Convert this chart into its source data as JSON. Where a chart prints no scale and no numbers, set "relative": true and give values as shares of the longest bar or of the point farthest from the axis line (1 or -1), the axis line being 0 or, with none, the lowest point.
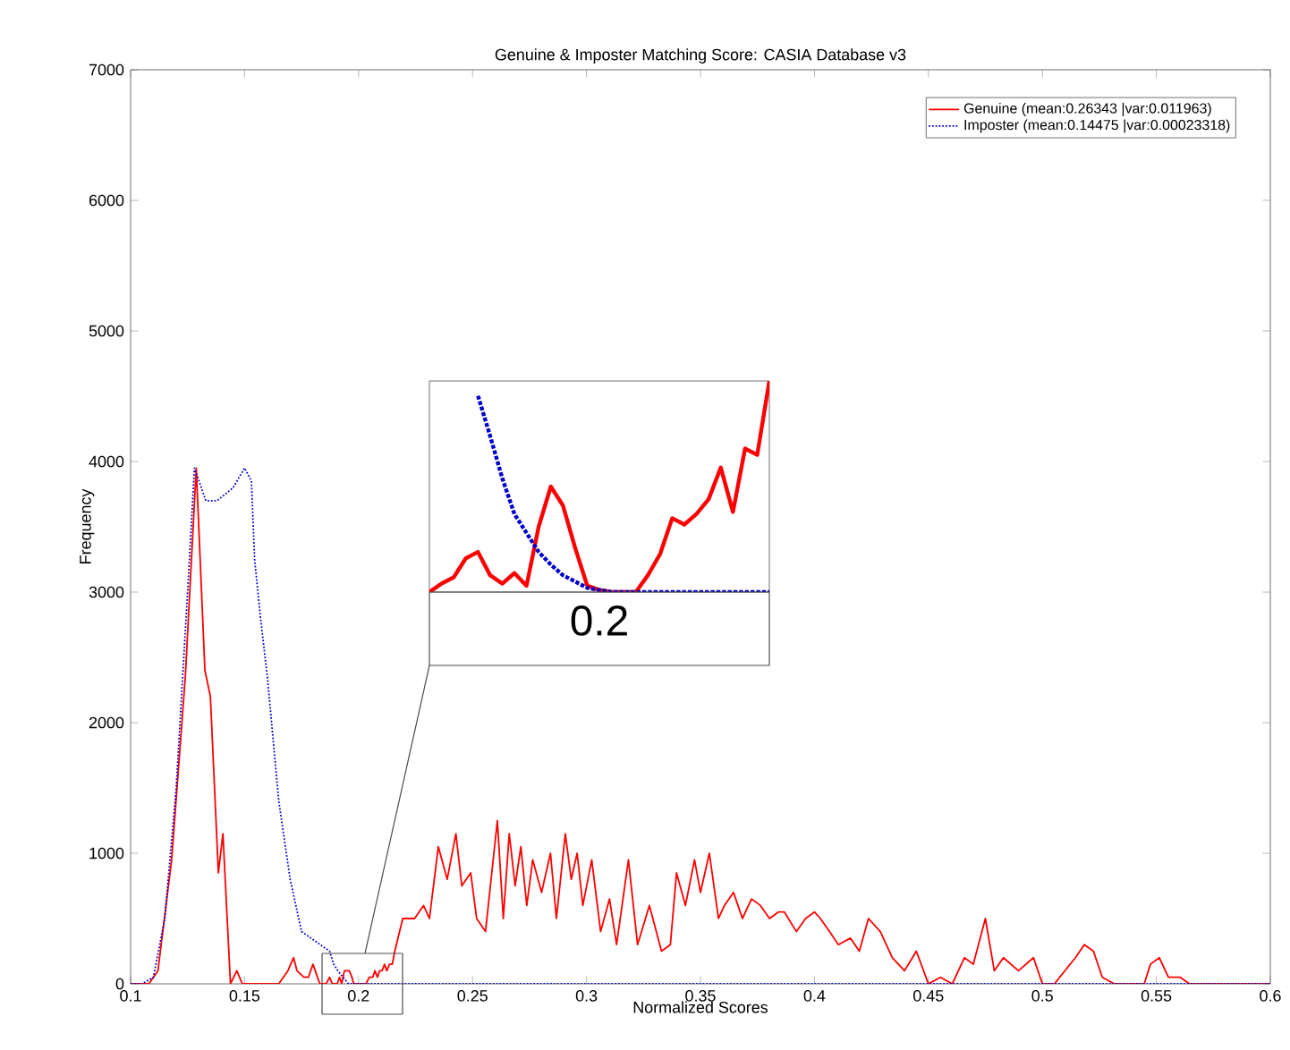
{
  "chart_data": [
    {
      "type": "line",
      "title": "Genuine & Imposter Matching Score: CASIA Database v3",
      "xlabel": "Normalized Scores",
      "ylabel": "Frequency",
      "xlim": [
        0.1,
        0.6
      ],
      "ylim": [
        0,
        7000
      ],
      "xticks": [
        0.1,
        0.15,
        0.2,
        0.25,
        0.3,
        0.35,
        0.4,
        0.45,
        0.5,
        0.55,
        0.6
      ],
      "yticks": [
        0,
        1000,
        2000,
        3000,
        4000,
        5000,
        6000,
        7000
      ],
      "legend": "top right",
      "series": [
        {
          "name": "Genuine (mean:0.26343 |var:0.011963)",
          "color": "#ff0000",
          "line_style": "solid",
          "x": [
            0.1,
            0.108,
            0.112,
            0.118,
            0.124,
            0.1288,
            0.1326,
            0.135,
            0.1385,
            0.1405,
            0.1438,
            0.1466,
            0.149,
            0.165,
            0.169,
            0.1715,
            0.173,
            0.176,
            0.178,
            0.18,
            0.183,
            0.1847,
            0.1858,
            0.1873,
            0.1885,
            0.1897,
            0.1906,
            0.1917,
            0.1926,
            0.1938,
            0.1949,
            0.1959,
            0.1971,
            0.1979,
            0.1988,
            0.1997,
            0.2033,
            0.2047,
            0.2062,
            0.2072,
            0.2083,
            0.2092,
            0.2103,
            0.2114,
            0.2124,
            0.2136,
            0.2148,
            0.2159,
            0.2194,
            0.2246,
            0.2285,
            0.2311,
            0.235,
            0.2389,
            0.2427,
            0.2453,
            0.2492,
            0.2518,
            0.2557,
            0.2609,
            0.2635,
            0.2661,
            0.2687,
            0.2712,
            0.2738,
            0.2764,
            0.2803,
            0.2842,
            0.2868,
            0.2907,
            0.2933,
            0.2959,
            0.2984,
            0.3023,
            0.3062,
            0.3101,
            0.3132,
            0.3184,
            0.3224,
            0.3276,
            0.3329,
            0.3368,
            0.3395,
            0.3434,
            0.3474,
            0.35,
            0.3539,
            0.3579,
            0.3605,
            0.3645,
            0.3684,
            0.3724,
            0.3763,
            0.3803,
            0.3842,
            0.3868,
            0.3921,
            0.3961,
            0.4,
            0.4026,
            0.4066,
            0.4105,
            0.4158,
            0.4197,
            0.4237,
            0.4289,
            0.4342,
            0.4395,
            0.4447,
            0.45,
            0.4553,
            0.4605,
            0.4658,
            0.4697,
            0.475,
            0.4789,
            0.4829,
            0.4895,
            0.4961,
            0.5,
            0.5053,
            0.5145,
            0.5184,
            0.5224,
            0.5263,
            0.5316,
            0.5447,
            0.5474,
            0.5513,
            0.5553,
            0.5605,
            0.5645,
            0.6
          ],
          "values": [
            0,
            0,
            100,
            950,
            2350,
            3950,
            2400,
            2200,
            850,
            1150,
            0,
            100,
            0,
            0,
            100,
            200,
            100,
            50,
            50,
            150,
            0,
            0,
            0,
            50,
            0,
            0,
            0,
            50,
            0,
            100,
            100,
            100,
            50,
            0,
            0,
            0,
            0,
            50,
            50,
            100,
            50,
            100,
            100,
            150,
            100,
            150,
            150,
            250,
            500,
            500,
            600,
            500,
            1050,
            800,
            1150,
            750,
            850,
            500,
            400,
            1250,
            500,
            1150,
            750,
            1050,
            600,
            950,
            700,
            1000,
            500,
            1150,
            800,
            1000,
            600,
            950,
            400,
            650,
            300,
            950,
            300,
            600,
            250,
            300,
            850,
            600,
            950,
            700,
            1000,
            500,
            600,
            700,
            500,
            650,
            600,
            500,
            550,
            550,
            400,
            500,
            550,
            500,
            400,
            300,
            350,
            250,
            500,
            400,
            200,
            100,
            250,
            0,
            50,
            0,
            200,
            150,
            500,
            100,
            200,
            100,
            200,
            0,
            0,
            200,
            300,
            250,
            50,
            0,
            0,
            150,
            200,
            50,
            50,
            0,
            0
          ]
        },
        {
          "name": "Imposter (mean:0.14475 |var:0.00023318)",
          "color": "#0000cc",
          "line_style": "dotted",
          "x": [
            0.1,
            0.105,
            0.11,
            0.115,
            0.12,
            0.125,
            0.128,
            0.133,
            0.138,
            0.145,
            0.15,
            0.153,
            0.1544,
            0.157,
            0.16,
            0.165,
            0.17,
            0.175,
            0.1873,
            0.1891,
            0.1909,
            0.1932,
            0.1956,
            0.1979,
            0.2003,
            0.6
          ],
          "values": [
            0,
            0,
            50,
            500,
            1500,
            3000,
            3950,
            3700,
            3700,
            3800,
            3950,
            3850,
            3250,
            2800,
            2350,
            1400,
            800,
            400,
            250,
            150,
            100,
            50,
            0,
            0,
            0,
            0
          ]
        }
      ]
    },
    {
      "type": "line",
      "relative": true,
      "annotations": [
        "0.2"
      ],
      "categories": [
        null,
        null,
        null,
        null,
        null,
        null,
        null,
        null,
        null,
        null,
        null,
        null,
        null,
        null,
        null,
        null,
        null,
        null,
        null,
        null,
        null,
        null,
        null,
        null,
        null,
        null,
        null,
        null,
        null
      ],
      "series": [
        {
          "color": "#ff0000",
          "line_style": "solid",
          "values": [
            0,
            0.04,
            0.07,
            0.16,
            0.19,
            0.08,
            0.04,
            0.09,
            0.03,
            0.31,
            0.5,
            0.41,
            0.21,
            0.03,
            0.01,
            0,
            0,
            0,
            0.08,
            0.18,
            0.35,
            0.32,
            0.37,
            0.44,
            0.59,
            0.38,
            0.68,
            0.65,
            1
          ]
        },
        {
          "color": "#0000cc",
          "line_style": "dotted",
          "values": [
            null,
            null,
            null,
            null,
            0.93,
            0.74,
            0.54,
            0.37,
            0.28,
            0.19,
            0.13,
            0.08,
            0.05,
            0.02,
            0.01,
            0,
            0,
            0,
            0,
            0,
            0,
            0,
            0,
            0,
            0,
            0,
            0,
            0,
            0
          ]
        }
      ]
    }
  ]
}
